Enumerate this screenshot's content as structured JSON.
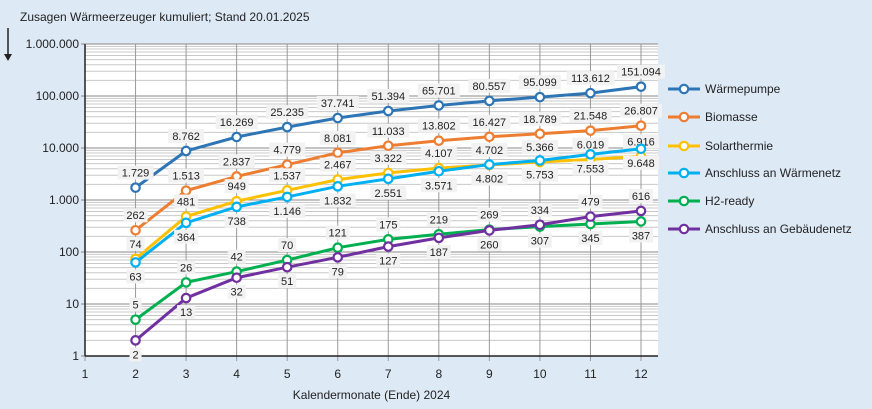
{
  "chart_data": {
    "type": "line",
    "title": "Zusagen Wärmeerzeuger kumuliert; Stand  20.01.2025",
    "xlabel": "Kalendermonate (Ende) 2024",
    "ylabel": "",
    "yscale": "log",
    "ylim": [
      1,
      1000000
    ],
    "xlim": [
      1,
      12
    ],
    "x_ticks": [
      1,
      2,
      3,
      4,
      5,
      6,
      7,
      8,
      9,
      10,
      11,
      12
    ],
    "y_ticks": [
      1,
      10,
      100,
      1000,
      10000,
      100000,
      1000000
    ],
    "y_tick_labels": [
      "1",
      "10",
      "100",
      "1.000",
      "10.000",
      "100.000",
      "1.000.000"
    ],
    "grid": true,
    "legend_position": "right",
    "x": [
      2,
      3,
      4,
      5,
      6,
      7,
      8,
      9,
      10,
      11,
      12
    ],
    "series": [
      {
        "name": "Wärmepumpe",
        "color": "#2e75b6",
        "values": [
          1729,
          8762,
          16269,
          25235,
          37741,
          51394,
          65701,
          80557,
          95099,
          113612,
          151094
        ]
      },
      {
        "name": "Biomasse",
        "color": "#ed7d31",
        "values": [
          262,
          1513,
          2837,
          4779,
          8081,
          11033,
          13802,
          16427,
          18789,
          21548,
          26807
        ]
      },
      {
        "name": "Solarthermie",
        "color": "#ffc000",
        "values": [
          74,
          481,
          949,
          1537,
          2467,
          3322,
          4107,
          4702,
          5366,
          6019,
          6916
        ]
      },
      {
        "name": "Anschluss an Wärmenetz",
        "color": "#00b0f0",
        "values": [
          63,
          364,
          738,
          1146,
          1832,
          2551,
          3571,
          4802,
          5753,
          7553,
          9648
        ]
      },
      {
        "name": "H2-ready",
        "color": "#00b050",
        "values": [
          5,
          26,
          42,
          70,
          121,
          175,
          219,
          269,
          307,
          345,
          387
        ]
      },
      {
        "name": "Anschluss an Gebäudenetz",
        "color": "#7030a0",
        "values": [
          2,
          13,
          32,
          51,
          79,
          127,
          187,
          260,
          334,
          479,
          616
        ]
      }
    ]
  }
}
